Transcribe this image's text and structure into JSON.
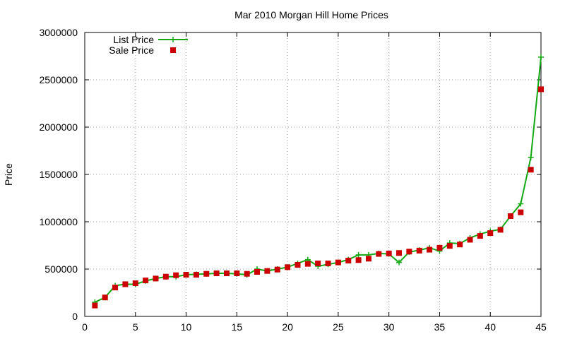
{
  "chart_data": {
    "type": "line",
    "title": "Mar 2010 Morgan Hill Home Prices",
    "xlabel": "",
    "ylabel": "Price",
    "xlim": [
      0,
      45
    ],
    "ylim": [
      0,
      3000000
    ],
    "x_ticks": [
      0,
      5,
      10,
      15,
      20,
      25,
      30,
      35,
      40,
      45
    ],
    "y_ticks": [
      0,
      500000,
      1000000,
      1500000,
      2000000,
      2500000,
      3000000
    ],
    "grid": true,
    "legend_position": "top-left",
    "x": [
      1,
      2,
      3,
      4,
      5,
      6,
      7,
      8,
      9,
      10,
      11,
      12,
      13,
      14,
      15,
      16,
      17,
      18,
      19,
      20,
      21,
      22,
      23,
      24,
      25,
      26,
      27,
      28,
      29,
      30,
      31,
      32,
      33,
      34,
      35,
      36,
      37,
      38,
      39,
      40,
      41,
      42,
      43,
      44,
      45
    ],
    "series": [
      {
        "name": "List Price",
        "style": "linespoints",
        "color": "#14a814",
        "values": [
          150000,
          200000,
          325000,
          340000,
          340000,
          375000,
          400000,
          420000,
          420000,
          440000,
          445000,
          450000,
          455000,
          455000,
          450000,
          440000,
          500000,
          480000,
          500000,
          520000,
          560000,
          600000,
          530000,
          550000,
          570000,
          600000,
          650000,
          650000,
          665000,
          660000,
          570000,
          680000,
          700000,
          725000,
          690000,
          775000,
          770000,
          830000,
          870000,
          900000,
          920000,
          1060000,
          1190000,
          1680000,
          2740000
        ]
      },
      {
        "name": "Sale Price",
        "style": "points",
        "color": "#cc0000",
        "values": [
          115000,
          200000,
          305000,
          340000,
          350000,
          380000,
          400000,
          420000,
          435000,
          440000,
          440000,
          450000,
          455000,
          455000,
          455000,
          450000,
          470000,
          480000,
          495000,
          520000,
          545000,
          555000,
          560000,
          560000,
          570000,
          590000,
          595000,
          610000,
          660000,
          665000,
          670000,
          685000,
          695000,
          705000,
          725000,
          745000,
          760000,
          810000,
          850000,
          880000,
          915000,
          1060000,
          1100000,
          1550000,
          2400000
        ]
      }
    ]
  }
}
